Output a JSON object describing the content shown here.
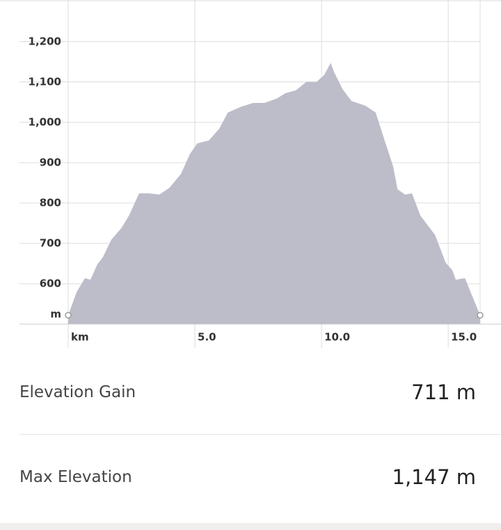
{
  "chart_data": {
    "type": "area",
    "x": [
      0,
      0.33,
      0.66,
      0.88,
      1.15,
      1.37,
      1.7,
      2.1,
      2.4,
      2.8,
      3.2,
      3.6,
      4.0,
      4.45,
      4.8,
      5.1,
      5.55,
      5.96,
      6.3,
      6.8,
      7.3,
      7.75,
      8.24,
      8.57,
      8.98,
      9.4,
      9.8,
      10.1,
      10.36,
      10.5,
      10.82,
      11.18,
      11.73,
      12.14,
      12.47,
      12.83,
      13.0,
      13.3,
      13.57,
      13.9,
      14.48,
      14.9,
      15.16,
      15.3,
      15.66,
      16.26
    ],
    "values": [
      522,
      579,
      614,
      610,
      648,
      666,
      709,
      738,
      769,
      824,
      824,
      821,
      838,
      872,
      921,
      948,
      955,
      984,
      1024,
      1038,
      1048,
      1048,
      1059,
      1072,
      1079,
      1100,
      1100,
      1117,
      1147,
      1124,
      1083,
      1053,
      1041,
      1024,
      959,
      890,
      834,
      821,
      824,
      769,
      721,
      652,
      634,
      610,
      614,
      522
    ],
    "color": "#b9b9c7",
    "xlim": [
      0,
      16.26
    ],
    "ylim": [
      500,
      1303
    ],
    "xticks": [
      {
        "value": 0,
        "label": "km"
      },
      {
        "value": 5,
        "label": "5.0"
      },
      {
        "value": 10,
        "label": "10.0"
      },
      {
        "value": 15,
        "label": "15.0"
      }
    ],
    "yticks": [
      {
        "value": 500,
        "label": "m"
      },
      600,
      700,
      800,
      900,
      {
        "value": 1000,
        "label": "1,000"
      },
      {
        "value": 1100,
        "label": "1,100"
      },
      {
        "value": 1200,
        "label": "1,200"
      }
    ],
    "grid": true
  },
  "stats": [
    {
      "label": "Elevation Gain",
      "value": "711 m"
    },
    {
      "label": "Max Elevation",
      "value": "1,147 m"
    }
  ]
}
